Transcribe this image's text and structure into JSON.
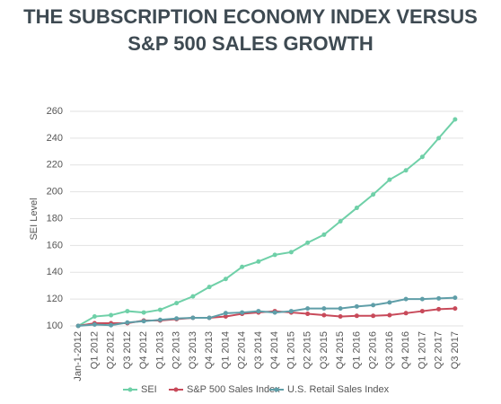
{
  "chart_data": {
    "type": "line",
    "title": [
      "THE SUBSCRIPTION ECONOMY INDEX VERSUS",
      "S&P 500 SALES GROWTH"
    ],
    "y_label": "SEI Level",
    "categories": [
      "Jan-1-2012",
      "Q1 2012",
      "Q2 2012",
      "Q3 2012",
      "Q4 2012",
      "Q1 2013",
      "Q2 2013",
      "Q3 2013",
      "Q4 2013",
      "Q1 2014",
      "Q2 2014",
      "Q3 2014",
      "Q4 2014",
      "Q1 2015",
      "Q2 2015",
      "Q3 2015",
      "Q4 2015",
      "Q1 2016",
      "Q2 2016",
      "Q3 2016",
      "Q4 2016",
      "Q1 2017",
      "Q2 2017",
      "Q3 2017"
    ],
    "series": [
      {
        "name": "SEI",
        "color": "#6fd0a8",
        "values": [
          100,
          107,
          108,
          111,
          110,
          112,
          117,
          122,
          129,
          135,
          144,
          148,
          153,
          155,
          162,
          168,
          178,
          188,
          198,
          209,
          216,
          226,
          240,
          254
        ]
      },
      {
        "name": "S&P 500 Sales Index",
        "color": "#c84a5a",
        "values": [
          100,
          102,
          102,
          102,
          104,
          104,
          105,
          106,
          106,
          107,
          109,
          110,
          111,
          110,
          109,
          108,
          107,
          107.5,
          107.5,
          108,
          109.5,
          111,
          112.5,
          113
        ]
      },
      {
        "name": "U.S. Retail Sales Index",
        "color": "#5f9ea8",
        "values": [
          100,
          101,
          100.5,
          102.5,
          103.5,
          104.5,
          105.5,
          106,
          106,
          109.5,
          110,
          111,
          110,
          111,
          113,
          113,
          113,
          114.5,
          115.5,
          117.5,
          120,
          120,
          120.5,
          121
        ]
      }
    ],
    "ylim": [
      100,
      260
    ],
    "yticks": [
      100,
      120,
      140,
      160,
      180,
      200,
      220,
      240,
      260
    ],
    "grid": true,
    "legend": "bottom"
  }
}
